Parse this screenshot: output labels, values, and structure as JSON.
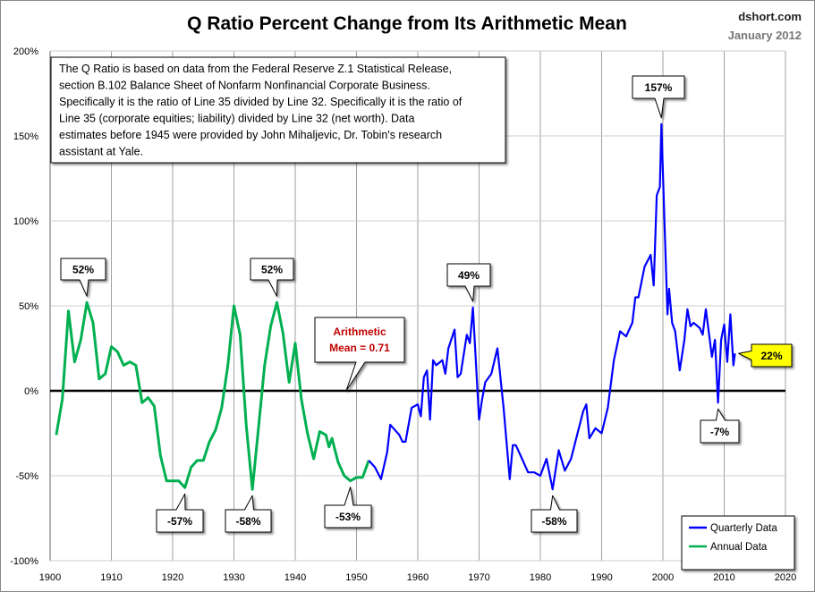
{
  "chart_data": {
    "type": "line",
    "title": "Q Ratio Percent Change from Its Arithmetic Mean",
    "source": "dshort.com",
    "date": "January 2012",
    "note": [
      "The Q Ratio is based on data from the Federal Reserve Z.1 Statistical Release,",
      "section B.102 Balance Sheet of Nonfarm Nonfinancial Corporate Business.",
      "Specifically it is the ratio of Line 35 divided by Line 32. Specifically it is the ratio of",
      "Line 35 (corporate equities; liability) divided by Line 32 (net worth). Data",
      "estimates before 1945 were provided by John Mihaljevic, Dr. Tobin's research",
      "assistant at Yale."
    ],
    "xlim": [
      1900,
      2020
    ],
    "ylim": [
      -100,
      200
    ],
    "x_ticks": [
      "1900",
      "1910",
      "1920",
      "1930",
      "1940",
      "1950",
      "1960",
      "1970",
      "1980",
      "1990",
      "2000",
      "2010",
      "2020"
    ],
    "y_ticks": [
      "200%",
      "150%",
      "100%",
      "50%",
      "0%",
      "-50%",
      "-100%"
    ],
    "grid": "vertical and horizontal",
    "legend": "bottom-right",
    "series": [
      {
        "name": "Annual Data",
        "color": "#00b050",
        "x": [
          1901,
          1902,
          1903,
          1904,
          1905,
          1906,
          1907,
          1908,
          1909,
          1910,
          1911,
          1912,
          1913,
          1914,
          1915,
          1916,
          1917,
          1918,
          1919,
          1920,
          1921,
          1922,
          1923,
          1924,
          1925,
          1926,
          1927,
          1928,
          1929,
          1930,
          1931,
          1932,
          1933,
          1934,
          1935,
          1936,
          1937,
          1938,
          1939,
          1940,
          1941,
          1942,
          1943,
          1944,
          1945,
          1945.5,
          1946,
          1947,
          1948,
          1949,
          1950,
          1951,
          1952
        ],
        "y": [
          -26,
          -5,
          47,
          17,
          30,
          52,
          40,
          7,
          10,
          26,
          23,
          15,
          17,
          15,
          -7,
          -4,
          -9,
          -38,
          -53,
          -53,
          -53,
          -57,
          -45,
          -41,
          -41,
          -30,
          -23,
          -10,
          15,
          50,
          33,
          -20,
          -58,
          -22,
          15,
          38,
          52,
          34,
          5,
          28,
          -5,
          -25,
          -40,
          -24,
          -26,
          -33,
          -28,
          -42,
          -50,
          -53,
          -51,
          -51,
          -41
        ]
      },
      {
        "name": "Quarterly Data",
        "color": "#0000ff",
        "x": [
          1952,
          1953,
          1954,
          1955,
          1955.5,
          1956,
          1957,
          1957.5,
          1958,
          1959,
          1960,
          1960.5,
          1961,
          1961.5,
          1962,
          1962.5,
          1963,
          1964,
          1964.5,
          1965,
          1966,
          1966.5,
          1967,
          1968,
          1968.5,
          1969,
          1970,
          1970.5,
          1971,
          1972,
          1973,
          1974,
          1975,
          1975.5,
          1976,
          1977,
          1978,
          1979,
          1980,
          1981,
          1982,
          1983,
          1984,
          1985,
          1986,
          1987,
          1987.5,
          1988,
          1989,
          1990,
          1991,
          1992,
          1993,
          1994,
          1995,
          1995.5,
          1996,
          1997,
          1998,
          1998.5,
          1999,
          1999.5,
          1999.75,
          2000.25,
          2000.75,
          2001,
          2001.5,
          2002,
          2002.75,
          2003.5,
          2004,
          2004.5,
          2005,
          2006,
          2006.5,
          2007,
          2008,
          2008.5,
          2009,
          2009.5,
          2010,
          2010.5,
          2011,
          2011.5,
          2011.75
        ],
        "y": [
          -41,
          -45,
          -52,
          -36,
          -20,
          -22,
          -26,
          -30,
          -30,
          -10,
          -8,
          -15,
          8,
          12,
          -17,
          18,
          15,
          18,
          10,
          25,
          36,
          8,
          10,
          33,
          28,
          49,
          -17,
          -5,
          5,
          10,
          25,
          -10,
          -52,
          -32,
          -32,
          -40,
          -48,
          -48,
          -50,
          -40,
          -58,
          -35,
          -47,
          -40,
          -26,
          -12,
          -8,
          -28,
          -22,
          -25,
          -10,
          18,
          35,
          32,
          40,
          55,
          55,
          73,
          80,
          62,
          115,
          120,
          157,
          100,
          45,
          60,
          40,
          35,
          12,
          30,
          48,
          38,
          40,
          37,
          33,
          48,
          20,
          30,
          -7,
          30,
          39,
          17,
          45,
          15,
          22
        ]
      }
    ],
    "annotations": [
      {
        "text": "52%",
        "x": 1906,
        "y": 52
      },
      {
        "text": "52%",
        "x": 1937,
        "y": 52
      },
      {
        "text": "49%",
        "x": 1969,
        "y": 49
      },
      {
        "text": "157%",
        "x": 1999.75,
        "y": 157
      },
      {
        "text": "-57%",
        "x": 1922,
        "y": -57
      },
      {
        "text": "-58%",
        "x": 1933,
        "y": -58
      },
      {
        "text": "-53%",
        "x": 1949,
        "y": -53
      },
      {
        "text": "-58%",
        "x": 1982,
        "y": -58
      },
      {
        "text": "-7%",
        "x": 2009,
        "y": -7
      },
      {
        "text": "22%",
        "x": 2011.75,
        "y": 22,
        "highlight": "#ffff00"
      }
    ],
    "mean_label": [
      "Arithmetic",
      "Mean = 0.71"
    ],
    "mean_color": "#c00000"
  }
}
